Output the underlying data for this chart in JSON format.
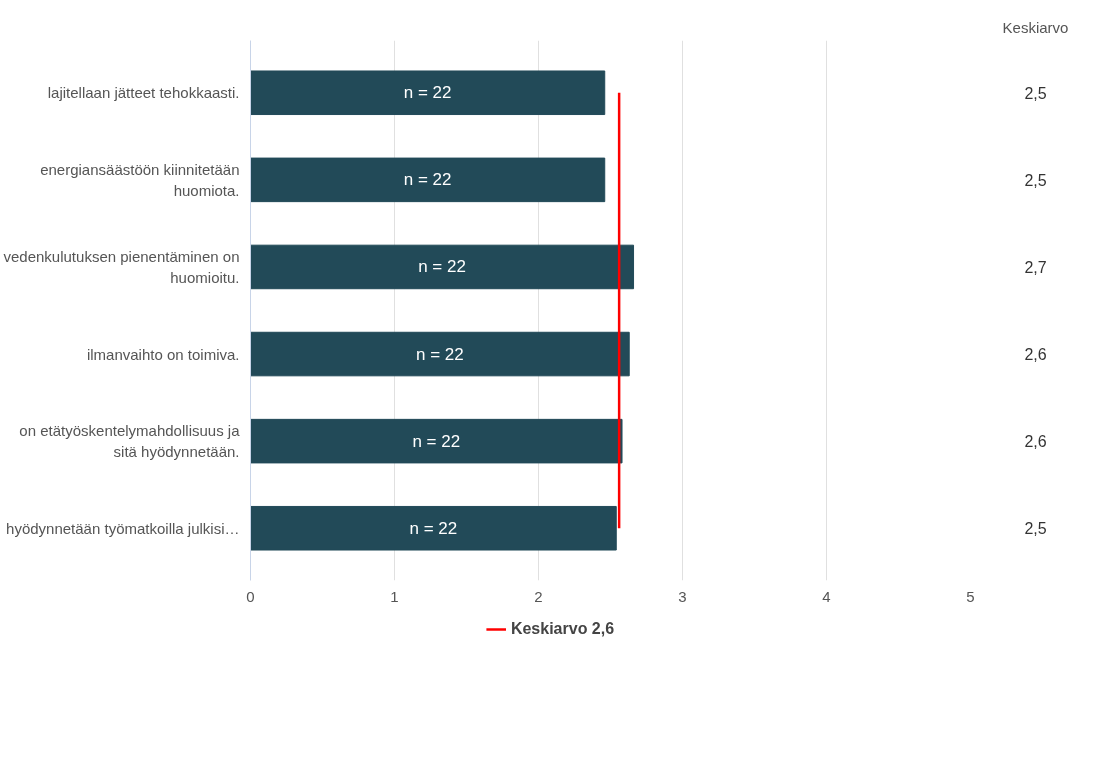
{
  "chart_data": {
    "type": "bar",
    "orientation": "horizontal",
    "categories": [
      "lajitellaan jätteet tehokkaasti.",
      "energiansäästöön kiinnitetään huomiota.",
      "vedenkulutuksen pienentäminen on huomioitu.",
      "ilmanvaihto on toimiva.",
      "on etätyöskentelymahdollisuus ja sitä hyödynnetään.",
      "hyödynnetään työmatkoilla julkisi…"
    ],
    "values": [
      2.46,
      2.46,
      2.66,
      2.63,
      2.58,
      2.54
    ],
    "color": "#224a58",
    "value_labels": [
      "2,5",
      "2,5",
      "2,7",
      "2,6",
      "2,6",
      "2,5"
    ],
    "xlim": [
      0,
      5
    ],
    "xticks": [
      0,
      1,
      2,
      3,
      4,
      5
    ],
    "grid": "x",
    "ref_lines": [
      {
        "axis": "x",
        "value": 2.56,
        "label": "Keskiarvo 2,6",
        "color": "#ff0000"
      }
    ],
    "legend": "bottom",
    "annotations": [
      "n = 22",
      "n = 22",
      "n = 22",
      "n = 22",
      "n = 22",
      "n = 22",
      "Keskiarvo"
    ]
  }
}
